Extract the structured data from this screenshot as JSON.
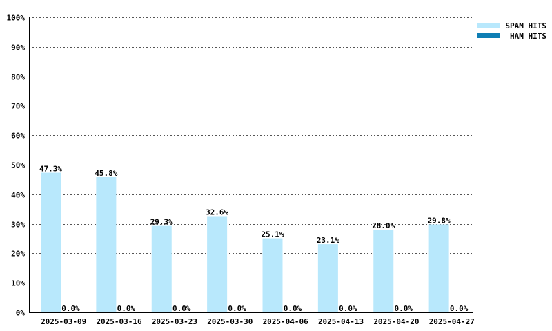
{
  "chart_data": {
    "type": "bar",
    "categories": [
      "2025-03-09",
      "2025-03-16",
      "2025-03-23",
      "2025-03-30",
      "2025-04-06",
      "2025-04-13",
      "2025-04-20",
      "2025-04-27"
    ],
    "series": [
      {
        "name": "SPAM HITS",
        "values": [
          47.3,
          45.8,
          29.3,
          32.6,
          25.1,
          23.1,
          28.0,
          29.8
        ],
        "color": "#b8e8fc"
      },
      {
        "name": "HAM HITS",
        "values": [
          0.0,
          0.0,
          0.0,
          0.0,
          0.0,
          0.0,
          0.0,
          0.0
        ],
        "color": "#0e7eb4"
      }
    ],
    "value_labels": [
      [
        "47.3%",
        "45.8%",
        "29.3%",
        "32.6%",
        "25.1%",
        "23.1%",
        "28.0%",
        "29.8%"
      ],
      [
        "0.0%",
        "0.0%",
        "0.0%",
        "0.0%",
        "0.0%",
        "0.0%",
        "0.0%",
        "0.0%"
      ]
    ],
    "y_ticks": [
      0,
      10,
      20,
      30,
      40,
      50,
      60,
      70,
      80,
      90,
      100
    ],
    "y_tick_labels": [
      "0%",
      "10%",
      "20%",
      "30%",
      "40%",
      "50%",
      "60%",
      "70%",
      "80%",
      "90%",
      "100%"
    ],
    "ylim": [
      0,
      100
    ],
    "grid": true,
    "legend_position": "top-right"
  }
}
